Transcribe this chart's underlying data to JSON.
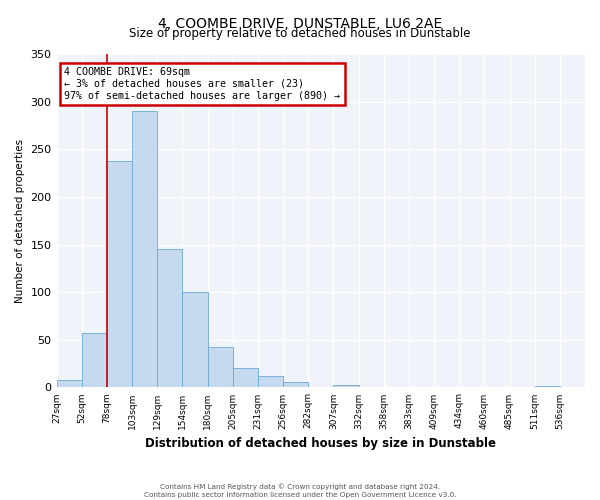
{
  "title": "4, COOMBE DRIVE, DUNSTABLE, LU6 2AE",
  "subtitle": "Size of property relative to detached houses in Dunstable",
  "xlabel": "Distribution of detached houses by size in Dunstable",
  "ylabel": "Number of detached properties",
  "bin_labels": [
    "27sqm",
    "52sqm",
    "78sqm",
    "103sqm",
    "129sqm",
    "154sqm",
    "180sqm",
    "205sqm",
    "231sqm",
    "256sqm",
    "282sqm",
    "307sqm",
    "332sqm",
    "358sqm",
    "383sqm",
    "409sqm",
    "434sqm",
    "460sqm",
    "485sqm",
    "511sqm",
    "536sqm"
  ],
  "bar_values": [
    8,
    57,
    238,
    290,
    145,
    100,
    42,
    20,
    12,
    6,
    0,
    3,
    0,
    0,
    0,
    0,
    0,
    0,
    0,
    2,
    0
  ],
  "bar_color": "#c5d9ef",
  "bar_edge_color": "#6aaad4",
  "vline_x_index": 2,
  "vline_color": "#cc0000",
  "ylim": [
    0,
    350
  ],
  "yticks": [
    0,
    50,
    100,
    150,
    200,
    250,
    300,
    350
  ],
  "annotation_title": "4 COOMBE DRIVE: 69sqm",
  "annotation_line1": "← 3% of detached houses are smaller (23)",
  "annotation_line2": "97% of semi-detached houses are larger (890) →",
  "annotation_box_color": "#cc0000",
  "footer_line1": "Contains HM Land Registry data © Crown copyright and database right 2024.",
  "footer_line2": "Contains public sector information licensed under the Open Government Licence v3.0.",
  "bg_color": "#ffffff",
  "plot_bg_color": "#f0f4fa"
}
